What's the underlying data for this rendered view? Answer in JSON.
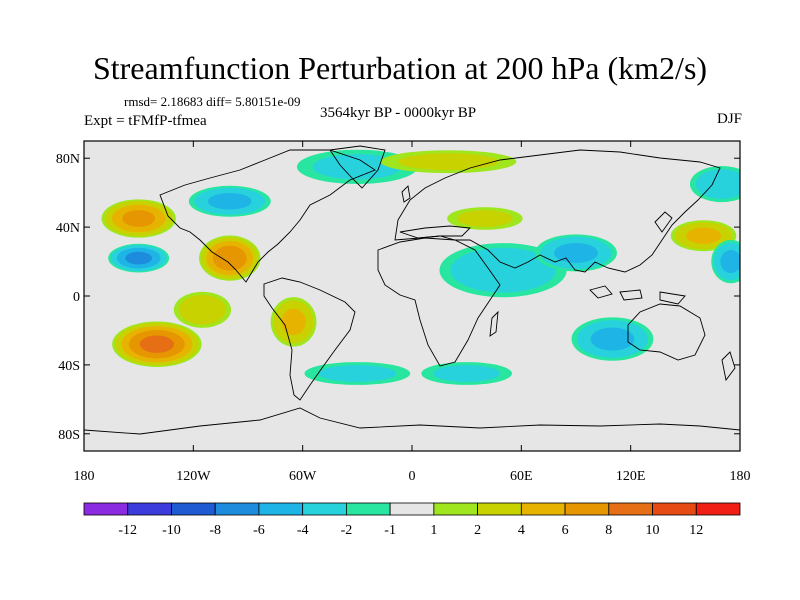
{
  "title": "Streamfunction Perturbation at 200 hPa (km2/s)",
  "stats_line": "rmsd= 2.18683 diff= 5.80151e-09",
  "experiment": "Expt = tFMfP-tfmea",
  "period": "3564kyr BP - 0000kyr BP",
  "season": "DJF",
  "map": {
    "projection": "cylindrical equidistant",
    "lon_range": [
      -180,
      180
    ],
    "lat_range": [
      -90,
      90
    ],
    "lat_ticks": [
      {
        "value": 80,
        "label": "80N"
      },
      {
        "value": 40,
        "label": "40N"
      },
      {
        "value": 0,
        "label": "0"
      },
      {
        "value": -40,
        "label": "40S"
      },
      {
        "value": -80,
        "label": "80S"
      }
    ],
    "lon_ticks": [
      {
        "value": -180,
        "label": "180"
      },
      {
        "value": -120,
        "label": "120W"
      },
      {
        "value": -60,
        "label": "60W"
      },
      {
        "value": 0,
        "label": "0"
      },
      {
        "value": 60,
        "label": "60E"
      },
      {
        "value": 120,
        "label": "120E"
      },
      {
        "value": 180,
        "label": "180"
      }
    ]
  },
  "colorbar": {
    "colors": [
      "#8a2be2",
      "#3c3cdc",
      "#1e5ad2",
      "#1e8cdc",
      "#1eb4e6",
      "#28d2dc",
      "#28e6a0",
      "#e6e6e6",
      "#a0e61e",
      "#c8d200",
      "#e6b400",
      "#e69600",
      "#e66e14",
      "#e64b14",
      "#f01e14"
    ],
    "tick_labels": [
      "-12",
      "-10",
      "-8",
      "-6",
      "-4",
      "-2",
      "-1",
      "1",
      "2",
      "4",
      "6",
      "8",
      "10",
      "12"
    ]
  },
  "chart_data": {
    "type": "heatmap",
    "title": "Streamfunction Perturbation at 200 hPa (km2/s)",
    "variable": "streamfunction perturbation",
    "units": "km2/s",
    "levels": [
      -12,
      -10,
      -8,
      -6,
      -4,
      -2,
      -1,
      1,
      2,
      4,
      6,
      8,
      10,
      12
    ],
    "anomaly_centers": [
      {
        "lon": -150,
        "lat": 45,
        "value": 6,
        "lx": 22,
        "ly": 12
      },
      {
        "lon": -150,
        "lat": 22,
        "value": -6,
        "lx": 18,
        "ly": 9
      },
      {
        "lon": -140,
        "lat": -28,
        "value": 8,
        "lx": 26,
        "ly": 14
      },
      {
        "lon": -100,
        "lat": 22,
        "value": 7,
        "lx": 18,
        "ly": 14
      },
      {
        "lon": -115,
        "lat": -8,
        "value": 3,
        "lx": 18,
        "ly": 12
      },
      {
        "lon": -65,
        "lat": -15,
        "value": 4,
        "lx": 14,
        "ly": 16
      },
      {
        "lon": -100,
        "lat": 55,
        "value": -4,
        "lx": 25,
        "ly": 10
      },
      {
        "lon": -30,
        "lat": 75,
        "value": -2,
        "lx": 40,
        "ly": 12
      },
      {
        "lon": 20,
        "lat": 78,
        "value": 2,
        "lx": 45,
        "ly": 8
      },
      {
        "lon": 50,
        "lat": 15,
        "value": -3,
        "lx": 40,
        "ly": 18
      },
      {
        "lon": 90,
        "lat": 25,
        "value": -4,
        "lx": 25,
        "ly": 12
      },
      {
        "lon": 110,
        "lat": -25,
        "value": -4,
        "lx": 25,
        "ly": 14
      },
      {
        "lon": 160,
        "lat": 35,
        "value": 4,
        "lx": 20,
        "ly": 10
      },
      {
        "lon": 170,
        "lat": 65,
        "value": -3,
        "lx": 20,
        "ly": 12
      },
      {
        "lon": -30,
        "lat": -45,
        "value": -2,
        "lx": 35,
        "ly": 8
      },
      {
        "lon": 30,
        "lat": -45,
        "value": -2,
        "lx": 30,
        "ly": 8
      },
      {
        "lon": 40,
        "lat": 45,
        "value": 2,
        "lx": 25,
        "ly": 8
      },
      {
        "lon": 175,
        "lat": 20,
        "value": -4,
        "lx": 12,
        "ly": 14
      }
    ]
  }
}
